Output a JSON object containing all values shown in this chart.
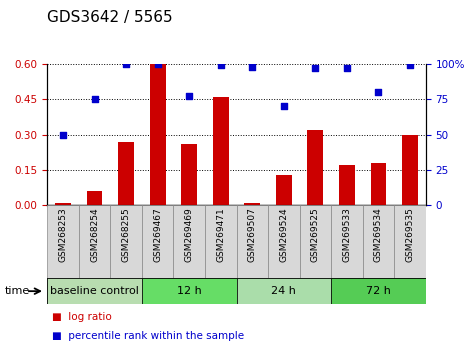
{
  "title": "GDS3642 / 5565",
  "samples": [
    "GSM268253",
    "GSM268254",
    "GSM268255",
    "GSM269467",
    "GSM269469",
    "GSM269471",
    "GSM269507",
    "GSM269524",
    "GSM269525",
    "GSM269533",
    "GSM269534",
    "GSM269535"
  ],
  "log_ratio": [
    0.01,
    0.06,
    0.27,
    0.6,
    0.26,
    0.46,
    0.01,
    0.13,
    0.32,
    0.17,
    0.18,
    0.3
  ],
  "percentile_rank": [
    50,
    75,
    100,
    100,
    77,
    99,
    98,
    70,
    97,
    97,
    80,
    99
  ],
  "bar_color": "#cc0000",
  "dot_color": "#0000cc",
  "left_yticks": [
    0,
    0.15,
    0.3,
    0.45,
    0.6
  ],
  "right_yticks": [
    0,
    25,
    50,
    75,
    100
  ],
  "ylim_left": [
    0,
    0.6
  ],
  "ylim_right": [
    0,
    100
  ],
  "groups": [
    {
      "label": "baseline control",
      "start": 0,
      "end": 3,
      "color": "#b8ddb0"
    },
    {
      "label": "12 h",
      "start": 3,
      "end": 6,
      "color": "#66dd66"
    },
    {
      "label": "24 h",
      "start": 6,
      "end": 9,
      "color": "#aaddaa"
    },
    {
      "label": "72 h",
      "start": 9,
      "end": 12,
      "color": "#55cc55"
    }
  ],
  "sample_bg_color": "#d8d8d8",
  "title_fontsize": 11,
  "tick_fontsize": 7.5,
  "legend_bar_label": "log ratio",
  "legend_dot_label": "percentile rank within the sample",
  "time_label": "time",
  "background_color": "#ffffff"
}
